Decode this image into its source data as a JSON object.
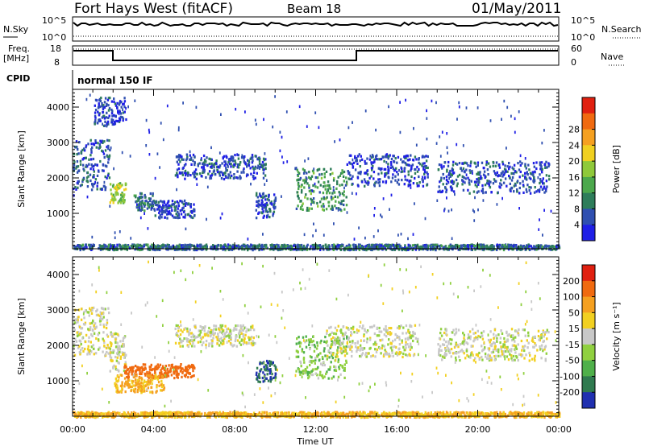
{
  "header": {
    "station": "Fort Hays West (fitACF)",
    "beam": "Beam 18",
    "date": "01/May/2011"
  },
  "noise_panel": {
    "left_label": "N.Sky",
    "right_label": "N.Search",
    "left_ticks": [
      "10^5",
      "10^0"
    ],
    "right_ticks": [
      "10^5",
      "10^0"
    ]
  },
  "freq_panel": {
    "left_label_line1": "Freq.",
    "left_label_line2": "[MHz]",
    "right_label": "Nave",
    "left_ticks": [
      "18",
      "8"
    ],
    "right_ticks": [
      "60",
      "0"
    ]
  },
  "cpid": {
    "label": "CPID",
    "value": "normal 150 IF"
  },
  "chart_data": [
    {
      "type": "heatmap",
      "title": "",
      "xlabel": "Time UT",
      "ylabel": "Slant Range [km]",
      "xlim": [
        0,
        24
      ],
      "ylim": [
        0,
        4500
      ],
      "xticks": [
        "00:00",
        "04:00",
        "08:00",
        "12:00",
        "16:00",
        "20:00",
        "00:00"
      ],
      "yticks": [
        1000,
        2000,
        3000,
        4000
      ],
      "colorbar": {
        "label": "Power [dB]",
        "ticks": [
          4,
          8,
          12,
          16,
          20,
          24,
          28
        ],
        "colors": [
          "#1f1fe6",
          "#2f4fb0",
          "#2e7d5a",
          "#4ca84c",
          "#8fc93a",
          "#f0d020",
          "#f5a020",
          "#f06a10",
          "#e02010"
        ]
      },
      "clusters": [
        {
          "t0": 0.0,
          "t1": 1.8,
          "r0": 1700,
          "r1": 3100,
          "value": 6
        },
        {
          "t0": 1.8,
          "t1": 2.6,
          "r0": 1300,
          "r1": 1900,
          "value": 18
        },
        {
          "t0": 1.0,
          "t1": 2.6,
          "r0": 3500,
          "r1": 4300,
          "value": 5
        },
        {
          "t0": 3.0,
          "t1": 4.0,
          "r0": 1100,
          "r1": 1600,
          "value": 8
        },
        {
          "t0": 4.0,
          "t1": 6.0,
          "r0": 900,
          "r1": 1400,
          "value": 5
        },
        {
          "t0": 5.0,
          "t1": 9.5,
          "r0": 2000,
          "r1": 2700,
          "value": 6
        },
        {
          "t0": 9.0,
          "t1": 10.0,
          "r0": 900,
          "r1": 1600,
          "value": 6
        },
        {
          "t0": 11.0,
          "t1": 13.5,
          "r0": 1100,
          "r1": 2300,
          "value": 12
        },
        {
          "t0": 13.5,
          "t1": 17.5,
          "r0": 1800,
          "r1": 2700,
          "value": 5
        },
        {
          "t0": 18.0,
          "t1": 23.5,
          "r0": 1600,
          "r1": 2500,
          "value": 6
        },
        {
          "t0": 0.0,
          "t1": 24.0,
          "r0": 0,
          "r1": 150,
          "value": 8
        }
      ]
    },
    {
      "type": "heatmap",
      "title": "",
      "xlabel": "Time UT",
      "ylabel": "Slant Range [km]",
      "xlim": [
        0,
        24
      ],
      "ylim": [
        0,
        4500
      ],
      "xticks": [
        "00:00",
        "04:00",
        "08:00",
        "12:00",
        "16:00",
        "20:00",
        "00:00"
      ],
      "yticks": [
        1000,
        2000,
        3000,
        4000
      ],
      "colorbar": {
        "label": "Velocity [m s⁻¹]",
        "ticks": [
          200,
          100,
          50,
          15,
          -15,
          -50,
          -100,
          -200
        ],
        "colors": [
          "#2030b0",
          "#2f7a4f",
          "#4fb04a",
          "#90d040",
          "#c8c8c8",
          "#f2d020",
          "#f5a020",
          "#f06a10",
          "#e02010"
        ]
      },
      "clusters": [
        {
          "t0": 0.0,
          "t1": 1.8,
          "r0": 1700,
          "r1": 3100,
          "value": 0
        },
        {
          "t0": 1.8,
          "t1": 2.6,
          "r0": 1300,
          "r1": 2400,
          "value": 0
        },
        {
          "t0": 2.5,
          "t1": 6.0,
          "r0": 1100,
          "r1": 1500,
          "value": -150
        },
        {
          "t0": 2.0,
          "t1": 4.5,
          "r0": 700,
          "r1": 1200,
          "value": -60
        },
        {
          "t0": 5.0,
          "t1": 9.0,
          "r0": 2000,
          "r1": 2600,
          "value": 0
        },
        {
          "t0": 9.0,
          "t1": 10.0,
          "r0": 1000,
          "r1": 1600,
          "value": 200
        },
        {
          "t0": 11.0,
          "t1": 13.5,
          "r0": 1100,
          "r1": 2300,
          "value": 40
        },
        {
          "t0": 12.5,
          "t1": 17.0,
          "r0": 1700,
          "r1": 2600,
          "value": 0
        },
        {
          "t0": 18.0,
          "t1": 23.5,
          "r0": 1600,
          "r1": 2500,
          "value": 0
        },
        {
          "t0": 0.0,
          "t1": 24.0,
          "r0": 0,
          "r1": 150,
          "value": -50
        }
      ]
    }
  ]
}
